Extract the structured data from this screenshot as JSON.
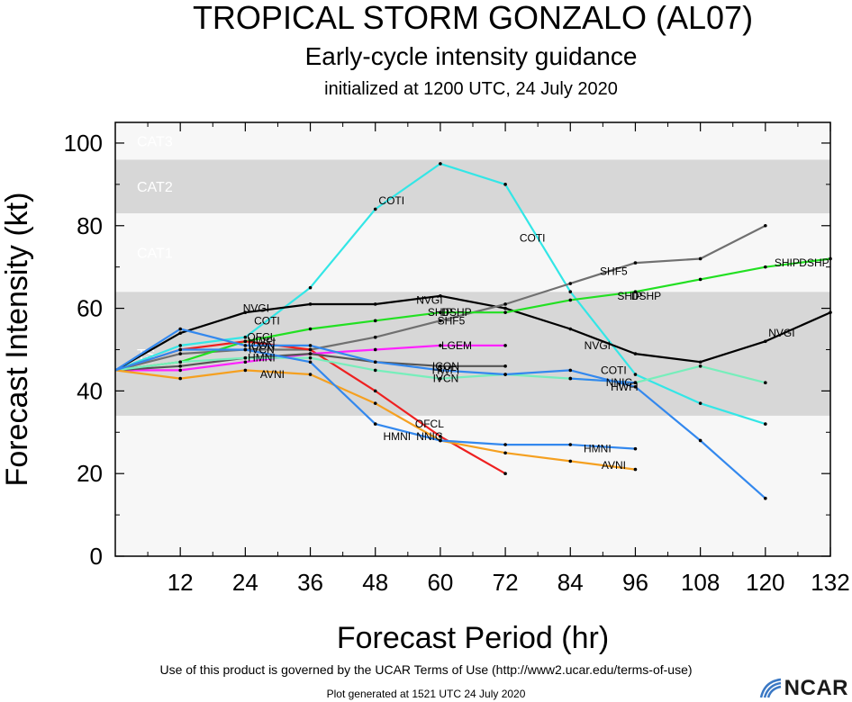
{
  "chart_data": {
    "type": "line",
    "title": "TROPICAL STORM GONZALO (AL07)",
    "subtitle": "Early-cycle intensity guidance",
    "subtitle2": "initialized at 1200 UTC, 24 July 2020",
    "xlabel": "Forecast Period (hr)",
    "ylabel": "Forecast Intensity (kt)",
    "xlim": [
      0,
      132
    ],
    "ylim": [
      0,
      105
    ],
    "xticks": [
      12,
      24,
      36,
      48,
      60,
      72,
      84,
      96,
      108,
      120,
      132
    ],
    "yticks": [
      0,
      20,
      40,
      60,
      80,
      100
    ],
    "grid": false,
    "intensity_bands": [
      {
        "label": "",
        "from": 0,
        "to": 34,
        "color": "#f7f7f7"
      },
      {
        "label": "TS",
        "from": 34,
        "to": 64,
        "color": "#d7d7d7"
      },
      {
        "label": "CAT1",
        "from": 64,
        "to": 83,
        "color": "#f7f7f7"
      },
      {
        "label": "CAT2",
        "from": 83,
        "to": 96,
        "color": "#d7d7d7"
      },
      {
        "label": "CAT3",
        "from": 96,
        "to": 105,
        "color": "#f7f7f7"
      }
    ],
    "series": [
      {
        "name": "COTI",
        "color": "#33e6e6",
        "x": [
          0,
          12,
          24,
          36,
          48,
          60,
          72,
          84,
          96,
          108,
          120
        ],
        "y": [
          45,
          51,
          53,
          65,
          84,
          95,
          90,
          64,
          44,
          37,
          32
        ],
        "labels": [
          {
            "text": "COTI",
            "x": 28,
            "y": 57
          },
          {
            "text": "COTI",
            "x": 51,
            "y": 86
          },
          {
            "text": "COTI",
            "x": 77,
            "y": 77
          },
          {
            "text": "COTI",
            "x": 92,
            "y": 45
          }
        ]
      },
      {
        "name": "NVGI",
        "color": "#000000",
        "x": [
          0,
          12,
          24,
          36,
          48,
          60,
          72,
          84,
          96,
          108,
          120,
          132
        ],
        "y": [
          45,
          54,
          59,
          61,
          61,
          63,
          60,
          55,
          49,
          47,
          52,
          59
        ],
        "labels": [
          {
            "text": "NVGI",
            "x": 26,
            "y": 60
          },
          {
            "text": "NVGI",
            "x": 58,
            "y": 62
          },
          {
            "text": "NVGI",
            "x": 89,
            "y": 51
          },
          {
            "text": "NVGI",
            "x": 123,
            "y": 54
          }
        ]
      },
      {
        "name": "SHF5",
        "color": "#707070",
        "x": [
          0,
          12,
          24,
          36,
          48,
          60,
          72,
          84,
          96,
          108,
          120
        ],
        "y": [
          45,
          49,
          50,
          50,
          53,
          57,
          61,
          66,
          71,
          72,
          80
        ],
        "labels": [
          {
            "text": "SHF5",
            "x": 62,
            "y": 57
          },
          {
            "text": "SHF5",
            "x": 92,
            "y": 69
          }
        ]
      },
      {
        "name": "DSHP",
        "color": "#22e022",
        "x": [
          0,
          12,
          24,
          36,
          48,
          60,
          72,
          84,
          96,
          108,
          120,
          132
        ],
        "y": [
          45,
          47,
          52,
          55,
          57,
          59,
          59,
          62,
          64,
          67,
          70,
          72
        ],
        "labels": [
          {
            "text": "DSHP",
            "x": 63,
            "y": 59
          },
          {
            "text": "SHIP",
            "x": 60,
            "y": 59
          },
          {
            "text": "DSHP",
            "x": 98,
            "y": 63
          },
          {
            "text": "SHIP",
            "x": 95,
            "y": 63
          },
          {
            "text": "SHIP",
            "x": 124,
            "y": 71
          },
          {
            "text": "DSHP",
            "x": 129,
            "y": 71
          }
        ]
      },
      {
        "name": "OFCL",
        "color": "#ee2020",
        "x": [
          0,
          12,
          24,
          36,
          48,
          60,
          72
        ],
        "y": [
          45,
          50,
          52,
          50,
          40,
          29,
          20
        ],
        "labels": [
          {
            "text": "OFCL",
            "x": 27,
            "y": 53
          },
          {
            "text": "OFCL",
            "x": 58,
            "y": 32
          }
        ]
      },
      {
        "name": "LGEM",
        "color": "#ff22ff",
        "x": [
          0,
          12,
          24,
          36,
          48,
          60,
          72
        ],
        "y": [
          45,
          45,
          47,
          49,
          50,
          51,
          51
        ],
        "labels": [
          {
            "text": "LGEM",
            "x": 63,
            "y": 51
          }
        ]
      },
      {
        "name": "ICON",
        "color": "#555555",
        "x": [
          0,
          12,
          24,
          36,
          48,
          60,
          72
        ],
        "y": [
          45,
          46,
          48,
          49,
          47,
          46,
          46
        ],
        "labels": [
          {
            "text": "ICON",
            "x": 27,
            "y": 51
          },
          {
            "text": "ICON",
            "x": 61,
            "y": 46
          }
        ]
      },
      {
        "name": "IVCN",
        "color": "#77eebb",
        "x": [
          0,
          12,
          24,
          36,
          48,
          60,
          72,
          84,
          96,
          108,
          120
        ],
        "y": [
          45,
          47,
          48,
          48,
          45,
          43,
          44,
          43,
          42,
          46,
          42
        ],
        "labels": [
          {
            "text": "IVCN",
            "x": 27,
            "y": 50
          },
          {
            "text": "IVCN",
            "x": 61,
            "y": 43
          }
        ]
      },
      {
        "name": "HWFI",
        "color": "#3388ee",
        "x": [
          0,
          12,
          24,
          36,
          48,
          60,
          72,
          84,
          96,
          108,
          120
        ],
        "y": [
          45,
          55,
          51,
          51,
          47,
          45,
          44,
          45,
          41,
          28,
          14
        ],
        "labels": [
          {
            "text": "HWFI",
            "x": 27,
            "y": 52
          },
          {
            "text": "HWFI",
            "x": 61,
            "y": 45
          },
          {
            "text": "HWFI",
            "x": 94,
            "y": 41
          }
        ]
      },
      {
        "name": "AVNI",
        "color": "#f5a020",
        "x": [
          0,
          12,
          24,
          36,
          48,
          60,
          72,
          84,
          96
        ],
        "y": [
          45,
          43,
          45,
          44,
          37,
          28,
          25,
          23,
          21
        ],
        "labels": [
          {
            "text": "AVNI",
            "x": 29,
            "y": 44
          },
          {
            "text": "AVNI",
            "x": 92,
            "y": 22
          }
        ]
      },
      {
        "name": "HMNI",
        "color": "#3388ee",
        "x": [
          0,
          12,
          24,
          36,
          48,
          60,
          72,
          84,
          96
        ],
        "y": [
          45,
          50,
          50,
          47,
          32,
          28,
          27,
          27,
          26
        ],
        "labels": [
          {
            "text": "HMNI",
            "x": 27,
            "y": 48
          },
          {
            "text": "HMNI",
            "x": 52,
            "y": 29
          },
          {
            "text": "HMNI",
            "x": 89,
            "y": 26
          }
        ]
      },
      {
        "name": "NNIC",
        "color": "#3388ee",
        "x": [
          84,
          96
        ],
        "y": [
          43,
          42
        ],
        "labels": [
          {
            "text": "NNIC",
            "x": 58,
            "y": 29
          },
          {
            "text": "NNIC",
            "x": 93,
            "y": 42
          }
        ]
      }
    ]
  },
  "footer": {
    "terms": "Use of this product is governed by the UCAR Terms of Use (http://www2.ucar.edu/terms-of-use)",
    "generated": "Plot generated at 1521 UTC   24 July 2020",
    "logo_text": "NCAR"
  }
}
